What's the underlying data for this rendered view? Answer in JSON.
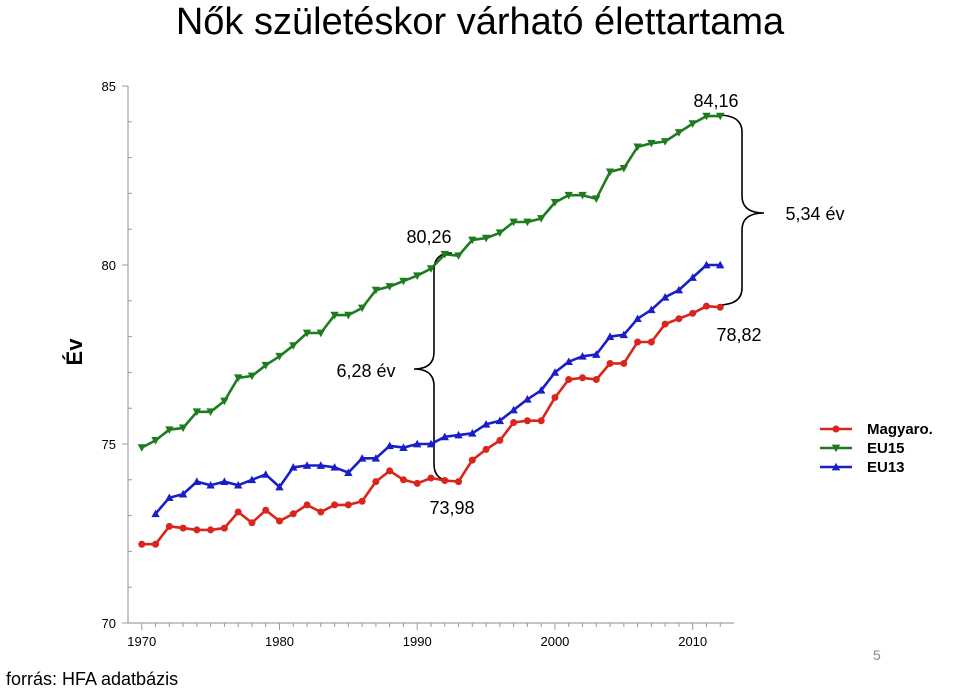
{
  "slide": {
    "title": "Nők születéskor várható élettartama",
    "source": "forrás: HFA adatbázis",
    "page_number": "5"
  },
  "chart_data": {
    "type": "line",
    "title": "Nők születéskor várható élettartama",
    "xlabel": "",
    "ylabel": "Év",
    "xlim": [
      1969,
      2013
    ],
    "ylim": [
      70,
      85
    ],
    "x_ticks": [
      1970,
      1980,
      1990,
      2000,
      2010
    ],
    "y_ticks": [
      70,
      75,
      80,
      85
    ],
    "grid": false,
    "legend_position": "right",
    "series": [
      {
        "name": "Magyaro.",
        "color": "#d9251c",
        "marker": "circle",
        "x": [
          1970,
          1971,
          1972,
          1973,
          1974,
          1975,
          1976,
          1977,
          1978,
          1979,
          1980,
          1981,
          1982,
          1983,
          1984,
          1985,
          1986,
          1987,
          1988,
          1989,
          1990,
          1991,
          1992,
          1993,
          1994,
          1995,
          1996,
          1997,
          1998,
          1999,
          2000,
          2001,
          2002,
          2003,
          2004,
          2005,
          2006,
          2007,
          2008,
          2009,
          2010,
          2011,
          2012
        ],
        "values": [
          72.2,
          72.2,
          72.7,
          72.65,
          72.6,
          72.6,
          72.65,
          73.1,
          72.8,
          73.15,
          72.85,
          73.05,
          73.3,
          73.1,
          73.3,
          73.3,
          73.4,
          73.95,
          74.25,
          74.0,
          73.9,
          74.05,
          73.98,
          73.95,
          74.55,
          74.85,
          75.1,
          75.6,
          75.65,
          75.65,
          76.3,
          76.8,
          76.85,
          76.8,
          77.25,
          77.25,
          77.85,
          77.85,
          78.35,
          78.5,
          78.65,
          78.85,
          78.82
        ]
      },
      {
        "name": "EU15",
        "color": "#1e7b1e",
        "marker": "triangle-down",
        "x": [
          1970,
          1971,
          1972,
          1973,
          1974,
          1975,
          1976,
          1977,
          1978,
          1979,
          1980,
          1981,
          1982,
          1983,
          1984,
          1985,
          1986,
          1987,
          1988,
          1989,
          1990,
          1991,
          1992,
          1993,
          1994,
          1995,
          1996,
          1997,
          1998,
          1999,
          2000,
          2001,
          2002,
          2003,
          2004,
          2005,
          2006,
          2007,
          2008,
          2009,
          2010,
          2011,
          2012
        ],
        "values": [
          74.9,
          75.1,
          75.4,
          75.45,
          75.9,
          75.9,
          76.2,
          76.85,
          76.9,
          77.2,
          77.45,
          77.75,
          78.1,
          78.1,
          78.6,
          78.6,
          78.8,
          79.3,
          79.4,
          79.55,
          79.7,
          79.9,
          80.3,
          80.26,
          80.7,
          80.75,
          80.9,
          81.2,
          81.2,
          81.3,
          81.75,
          81.95,
          81.95,
          81.85,
          82.6,
          82.7,
          83.3,
          83.4,
          83.45,
          83.7,
          83.95,
          84.16,
          84.16
        ]
      },
      {
        "name": "EU13",
        "color": "#1a1ec8",
        "marker": "triangle-up",
        "x": [
          1971,
          1972,
          1973,
          1974,
          1975,
          1976,
          1977,
          1978,
          1979,
          1980,
          1981,
          1982,
          1983,
          1984,
          1985,
          1986,
          1987,
          1988,
          1989,
          1990,
          1991,
          1992,
          1993,
          1994,
          1995,
          1996,
          1997,
          1998,
          1999,
          2000,
          2001,
          2002,
          2003,
          2004,
          2005,
          2006,
          2007,
          2008,
          2009,
          2010,
          2011,
          2012
        ],
        "values": [
          73.05,
          73.5,
          73.6,
          73.95,
          73.85,
          73.95,
          73.85,
          74.0,
          74.15,
          73.8,
          74.35,
          74.4,
          74.4,
          74.35,
          74.2,
          74.6,
          74.6,
          74.95,
          74.9,
          75.0,
          75.0,
          75.2,
          75.25,
          75.3,
          75.55,
          75.65,
          75.95,
          76.25,
          76.5,
          77.0,
          77.3,
          77.45,
          77.5,
          78.0,
          78.05,
          78.5,
          78.75,
          79.1,
          79.3,
          79.65,
          80.0,
          80.0
        ]
      }
    ],
    "annotations": [
      {
        "text": "84,16",
        "kind": "value-label"
      },
      {
        "text": "80,26",
        "kind": "value-label"
      },
      {
        "text": "78,82",
        "kind": "value-label"
      },
      {
        "text": "73,98",
        "kind": "value-label"
      },
      {
        "text": "6,28 év",
        "kind": "gap-label"
      },
      {
        "text": "5,34 év",
        "kind": "gap-label"
      }
    ]
  }
}
